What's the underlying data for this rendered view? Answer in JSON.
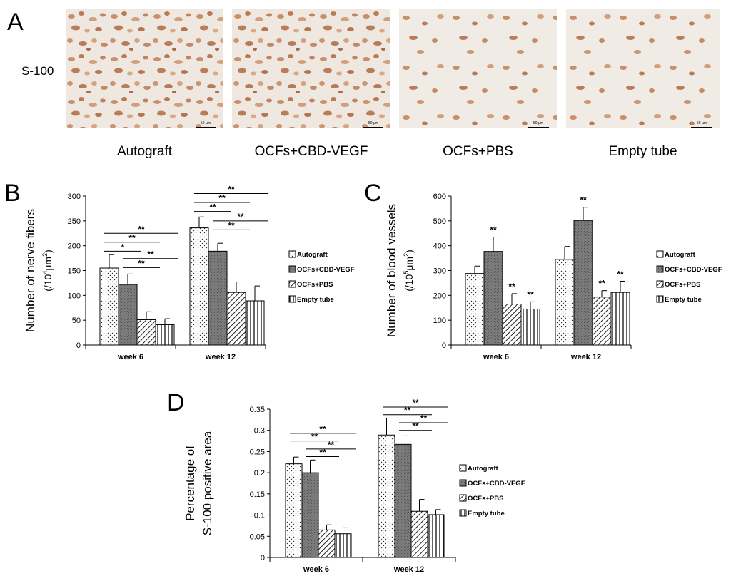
{
  "panel_a": {
    "letter": "A",
    "row_label": "S-100",
    "scale_bar_label": "50 µm",
    "captions": [
      "Autograft",
      "OCFs+CBD-VEGF",
      "OCFs+PBS",
      "Empty tube"
    ]
  },
  "legend_labels": [
    "Autograft",
    "OCFs+CBD-VEGF",
    "OCFs+PBS",
    "Empty tube"
  ],
  "chart_data": [
    {
      "id": "B",
      "letter": "B",
      "type": "bar",
      "categories": [
        "week 6",
        "week 12"
      ],
      "ylabel_line1": "Number of  nerve fibers",
      "ylabel_line2": "(/10",
      "ylabel_sup": "4",
      "ylabel_line2b": "μm",
      "ylabel_sup2": "2",
      "ylabel_line2c": ")",
      "ylim": [
        0,
        300
      ],
      "yticks": [
        "0",
        "50",
        "100",
        "150",
        "200",
        "250",
        "300"
      ],
      "series": [
        {
          "name": "Autograft",
          "values": [
            155,
            236
          ],
          "errors": [
            27,
            22
          ]
        },
        {
          "name": "OCFs+CBD-VEGF",
          "values": [
            122,
            189
          ],
          "errors": [
            21,
            16
          ]
        },
        {
          "name": "OCFs+PBS",
          "values": [
            51,
            106
          ],
          "errors": [
            16,
            21
          ]
        },
        {
          "name": "Empty tube",
          "values": [
            41,
            89
          ],
          "errors": [
            12,
            30
          ]
        }
      ],
      "brackets": [
        {
          "cat": 0,
          "from": 0,
          "to": 3,
          "label": "**",
          "y": 225
        },
        {
          "cat": 0,
          "from": 0,
          "to": 2,
          "label": "**",
          "y": 207
        },
        {
          "cat": 0,
          "from": 0,
          "to": 1,
          "label": "*",
          "y": 189
        },
        {
          "cat": 0,
          "from": 1,
          "to": 3,
          "label": "**",
          "y": 174
        },
        {
          "cat": 0,
          "from": 1,
          "to": 2,
          "label": "**",
          "y": 156
        },
        {
          "cat": 1,
          "from": 0,
          "to": 3,
          "label": "**",
          "y": 305
        },
        {
          "cat": 1,
          "from": 0,
          "to": 2,
          "label": "**",
          "y": 287
        },
        {
          "cat": 1,
          "from": 0,
          "to": 1,
          "label": "**",
          "y": 269
        },
        {
          "cat": 1,
          "from": 1,
          "to": 3,
          "label": "**",
          "y": 250
        },
        {
          "cat": 1,
          "from": 1,
          "to": 2,
          "label": "**",
          "y": 232
        }
      ],
      "stars": []
    },
    {
      "id": "C",
      "letter": "C",
      "type": "bar",
      "categories": [
        "week 6",
        "week 12"
      ],
      "ylabel_line1": "Number of  blood vessels",
      "ylabel_line2": "(/10",
      "ylabel_sup": "5",
      "ylabel_line2b": "μm",
      "ylabel_sup2": "2",
      "ylabel_line2c": ")",
      "ylim": [
        0,
        600
      ],
      "yticks": [
        "0",
        "100",
        "200",
        "300",
        "400",
        "500",
        "600"
      ],
      "series": [
        {
          "name": "Autograft",
          "values": [
            288,
            345
          ],
          "errors": [
            30,
            52
          ]
        },
        {
          "name": "OCFs+CBD-VEGF",
          "values": [
            377,
            502
          ],
          "errors": [
            58,
            53
          ]
        },
        {
          "name": "OCFs+PBS",
          "values": [
            165,
            193
          ],
          "errors": [
            42,
            26
          ]
        },
        {
          "name": "Empty tube",
          "values": [
            145,
            212
          ],
          "errors": [
            29,
            45
          ]
        }
      ],
      "brackets": [],
      "stars": [
        {
          "cat": 0,
          "bar": 1,
          "label": "**"
        },
        {
          "cat": 0,
          "bar": 2,
          "label": "**"
        },
        {
          "cat": 0,
          "bar": 3,
          "label": "**"
        },
        {
          "cat": 1,
          "bar": 1,
          "label": "**"
        },
        {
          "cat": 1,
          "bar": 2,
          "label": "**"
        },
        {
          "cat": 1,
          "bar": 3,
          "label": "**"
        }
      ]
    },
    {
      "id": "D",
      "letter": "D",
      "type": "bar",
      "categories": [
        "week 6",
        "week 12"
      ],
      "ylabel_line1": "Percentage of",
      "ylabel_line2": "S-100 positive area",
      "ylabel_sup": "",
      "ylabel_line2b": "",
      "ylabel_sup2": "",
      "ylabel_line2c": "",
      "ylim": [
        0,
        0.35
      ],
      "yticks": [
        "0",
        "0.05",
        "0.1",
        "0.15",
        "0.2",
        "0.25",
        "0.3",
        "0.35"
      ],
      "series": [
        {
          "name": "Autograft",
          "values": [
            0.221,
            0.289
          ],
          "errors": [
            0.016,
            0.04
          ]
        },
        {
          "name": "OCFs+CBD-VEGF",
          "values": [
            0.2,
            0.267
          ],
          "errors": [
            0.03,
            0.02
          ]
        },
        {
          "name": "OCFs+PBS",
          "values": [
            0.065,
            0.109
          ],
          "errors": [
            0.012,
            0.028
          ]
        },
        {
          "name": "Empty tube",
          "values": [
            0.056,
            0.101
          ],
          "errors": [
            0.014,
            0.012
          ]
        }
      ],
      "brackets": [
        {
          "cat": 0,
          "from": 0,
          "to": 3,
          "label": "**",
          "y": 0.293
        },
        {
          "cat": 0,
          "from": 0,
          "to": 2,
          "label": "**",
          "y": 0.275
        },
        {
          "cat": 0,
          "from": 1,
          "to": 3,
          "label": "**",
          "y": 0.256
        },
        {
          "cat": 0,
          "from": 1,
          "to": 2,
          "label": "**",
          "y": 0.238
        },
        {
          "cat": 1,
          "from": 0,
          "to": 3,
          "label": "**",
          "y": 0.355
        },
        {
          "cat": 1,
          "from": 0,
          "to": 2,
          "label": "**",
          "y": 0.337
        },
        {
          "cat": 1,
          "from": 1,
          "to": 3,
          "label": "**",
          "y": 0.318
        },
        {
          "cat": 1,
          "from": 1,
          "to": 2,
          "label": "**",
          "y": 0.3
        }
      ],
      "stars": []
    }
  ]
}
